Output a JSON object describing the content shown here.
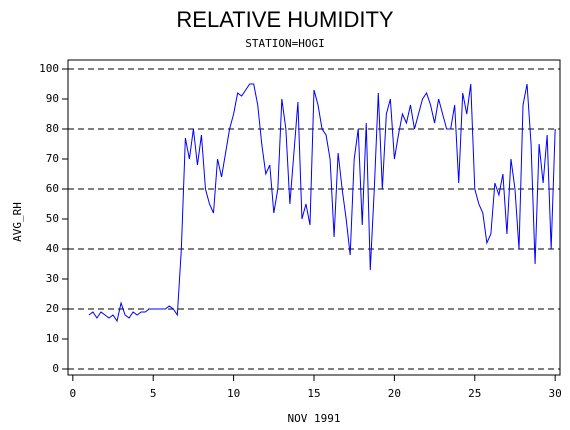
{
  "chart_data": {
    "type": "line",
    "title": "RELATIVE HUMIDITY",
    "subtitle": "STATION=HOGI",
    "xlabel": "NOV 1991",
    "ylabel": "AVG_RH",
    "x": [
      1,
      1.25,
      1.5,
      1.75,
      2,
      2.25,
      2.5,
      2.75,
      3,
      3.25,
      3.5,
      3.75,
      4,
      4.25,
      4.5,
      4.75,
      5,
      5.25,
      5.5,
      5.75,
      6,
      6.25,
      6.5,
      6.75,
      7,
      7.25,
      7.5,
      7.75,
      8,
      8.25,
      8.5,
      8.75,
      9,
      9.25,
      9.5,
      9.75,
      10,
      10.25,
      10.5,
      10.75,
      11,
      11.25,
      11.5,
      11.75,
      12,
      12.25,
      12.5,
      12.75,
      13,
      13.25,
      13.5,
      13.75,
      14,
      14.25,
      14.5,
      14.75,
      15,
      15.25,
      15.5,
      15.75,
      16,
      16.25,
      16.5,
      16.75,
      17,
      17.25,
      17.5,
      17.75,
      18,
      18.25,
      18.5,
      18.75,
      19,
      19.25,
      19.5,
      19.75,
      20,
      20.25,
      20.5,
      20.75,
      21,
      21.25,
      21.5,
      21.75,
      22,
      22.25,
      22.5,
      22.75,
      23,
      23.25,
      23.5,
      23.75,
      24,
      24.25,
      24.5,
      24.75,
      25,
      25.25,
      25.5,
      25.75,
      26,
      26.25,
      26.5,
      26.75,
      27,
      27.25,
      27.5,
      27.75,
      28,
      28.25,
      28.5,
      28.75,
      29,
      29.25,
      29.5,
      29.75,
      30
    ],
    "series": [
      {
        "name": "AVG_RH",
        "color": "#0000ff",
        "values": [
          18,
          19,
          17,
          19,
          18,
          17,
          18,
          16,
          22,
          18,
          17,
          19,
          18,
          19,
          19,
          20,
          20,
          20,
          20,
          20,
          21,
          20,
          18,
          40,
          77,
          70,
          80,
          68,
          78,
          60,
          55,
          52,
          70,
          64,
          72,
          80,
          85,
          92,
          91,
          93,
          95,
          95,
          88,
          75,
          65,
          68,
          52,
          60,
          90,
          80,
          55,
          72,
          89,
          50,
          55,
          48,
          93,
          88,
          80,
          78,
          70,
          44,
          72,
          60,
          50,
          38,
          70,
          80,
          48,
          82,
          33,
          60,
          92,
          60,
          85,
          90,
          70,
          78,
          85,
          82,
          88,
          80,
          85,
          90,
          92,
          88,
          82,
          90,
          85,
          80,
          80,
          88,
          62,
          92,
          85,
          95,
          60,
          55,
          52,
          42,
          45,
          62,
          58,
          65,
          45,
          70,
          60,
          40,
          88,
          95,
          75,
          35,
          75,
          62,
          78,
          40,
          80
        ]
      }
    ],
    "xlim": [
      -0.3,
      30.3
    ],
    "ylim": [
      -2,
      103
    ],
    "xticks": [
      0,
      5,
      10,
      15,
      20,
      25,
      30
    ],
    "yticks": [
      0,
      10,
      20,
      30,
      40,
      50,
      60,
      70,
      80,
      90,
      100
    ],
    "grid_lines": [
      0,
      20,
      40,
      60,
      80,
      100
    ]
  }
}
